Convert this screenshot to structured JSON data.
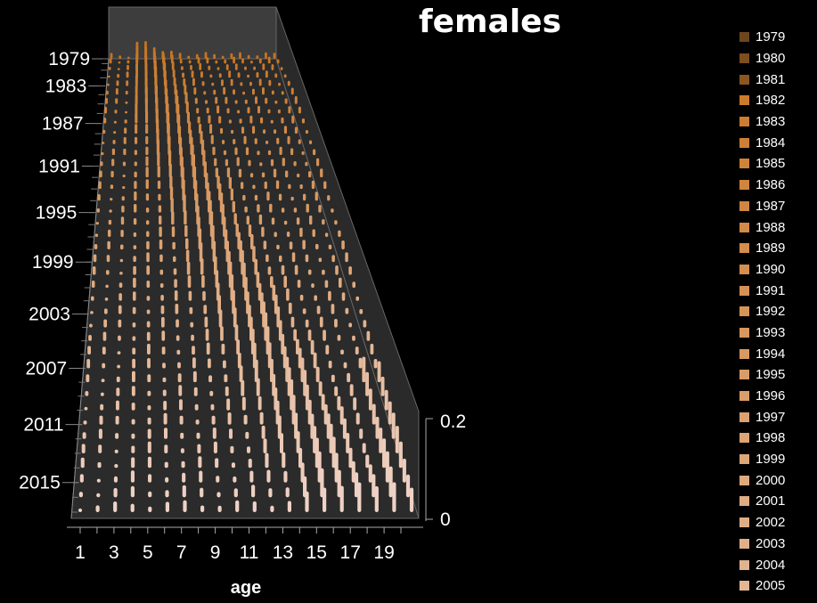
{
  "chart_data": {
    "type": "bar3d",
    "title": "females",
    "xlabel": "age",
    "x_tick_labels": [
      "1",
      "3",
      "5",
      "7",
      "9",
      "11",
      "13",
      "15",
      "17",
      "19"
    ],
    "ages": [
      1,
      2,
      3,
      4,
      5,
      6,
      7,
      8,
      9,
      10,
      11,
      12,
      13,
      14,
      15,
      16,
      17,
      18,
      19,
      20
    ],
    "y_tick_labels": [
      "1979",
      "1983",
      "1987",
      "1991",
      "1995",
      "1999",
      "2003",
      "2007",
      "2011",
      "2015"
    ],
    "z_tick_labels": [
      "0",
      "0.2"
    ],
    "zlim": [
      0,
      0.2
    ],
    "legend": [
      "1979",
      "1980",
      "1981",
      "1982",
      "1983",
      "1984",
      "1985",
      "1986",
      "1987",
      "1988",
      "1989",
      "1990",
      "1991",
      "1992",
      "1993",
      "1994",
      "1995",
      "1996",
      "1997",
      "1998",
      "1999",
      "2000",
      "2001",
      "2002",
      "2003",
      "2004",
      "2005"
    ],
    "years": [
      1979,
      1980,
      1981,
      1982,
      1983,
      1984,
      1985,
      1986,
      1987,
      1988,
      1989,
      1990,
      1991,
      1992,
      1993,
      1994,
      1995,
      1996,
      1997,
      1998,
      1999,
      2000,
      2001,
      2002,
      2003,
      2004,
      2005,
      2006,
      2007,
      2008,
      2009,
      2010,
      2011,
      2012,
      2013,
      2014,
      2015,
      2016,
      2017
    ],
    "colors": {
      "early": "#c8731f",
      "late": "#efd2c6",
      "wall": "#3c3c3c",
      "floor": "#333333"
    },
    "grid": true,
    "legend_position": "right"
  }
}
